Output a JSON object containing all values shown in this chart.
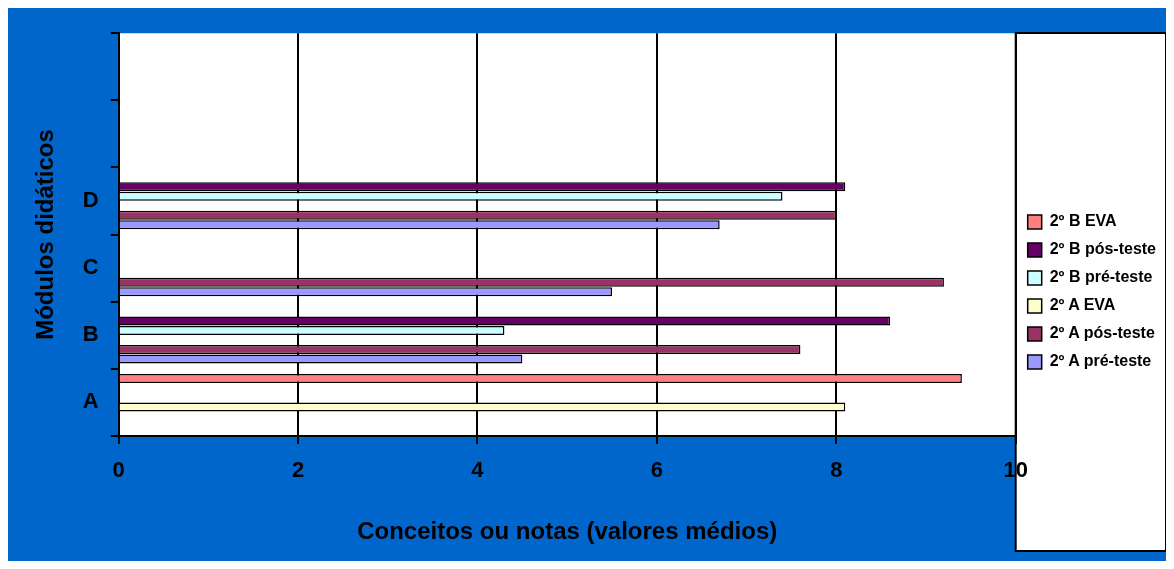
{
  "chart_data": {
    "type": "bar",
    "orientation": "horizontal",
    "xlabel": "Conceitos ou notas (valores médios)",
    "ylabel": "Módulos didáticos",
    "categories": [
      null,
      null,
      "D",
      "C",
      "B",
      "A"
    ],
    "series": [
      {
        "name": "2º B EVA",
        "color": "#ff8080",
        "values": [
          null,
          null,
          null,
          null,
          null,
          9.4
        ]
      },
      {
        "name": "2º B pós-teste",
        "color": "#660066",
        "values": [
          null,
          null,
          8.1,
          null,
          8.6,
          null
        ]
      },
      {
        "name": "2º B pré-teste",
        "color": "#ccffff",
        "values": [
          null,
          null,
          7.4,
          null,
          4.3,
          null
        ]
      },
      {
        "name": "2º A EVA",
        "color": "#ffffcc",
        "values": [
          null,
          null,
          null,
          null,
          null,
          8.1
        ]
      },
      {
        "name": "2º A pós-teste",
        "color": "#993366",
        "values": [
          null,
          null,
          8.0,
          9.2,
          7.6,
          null
        ]
      },
      {
        "name": "2º A pré-teste",
        "color": "#9999ff",
        "values": [
          null,
          null,
          6.7,
          5.5,
          4.5,
          null
        ]
      }
    ],
    "xlim": [
      0,
      10
    ],
    "xticks": [
      0,
      2,
      4,
      6,
      8,
      10
    ],
    "grid": "x",
    "legend": "right"
  }
}
